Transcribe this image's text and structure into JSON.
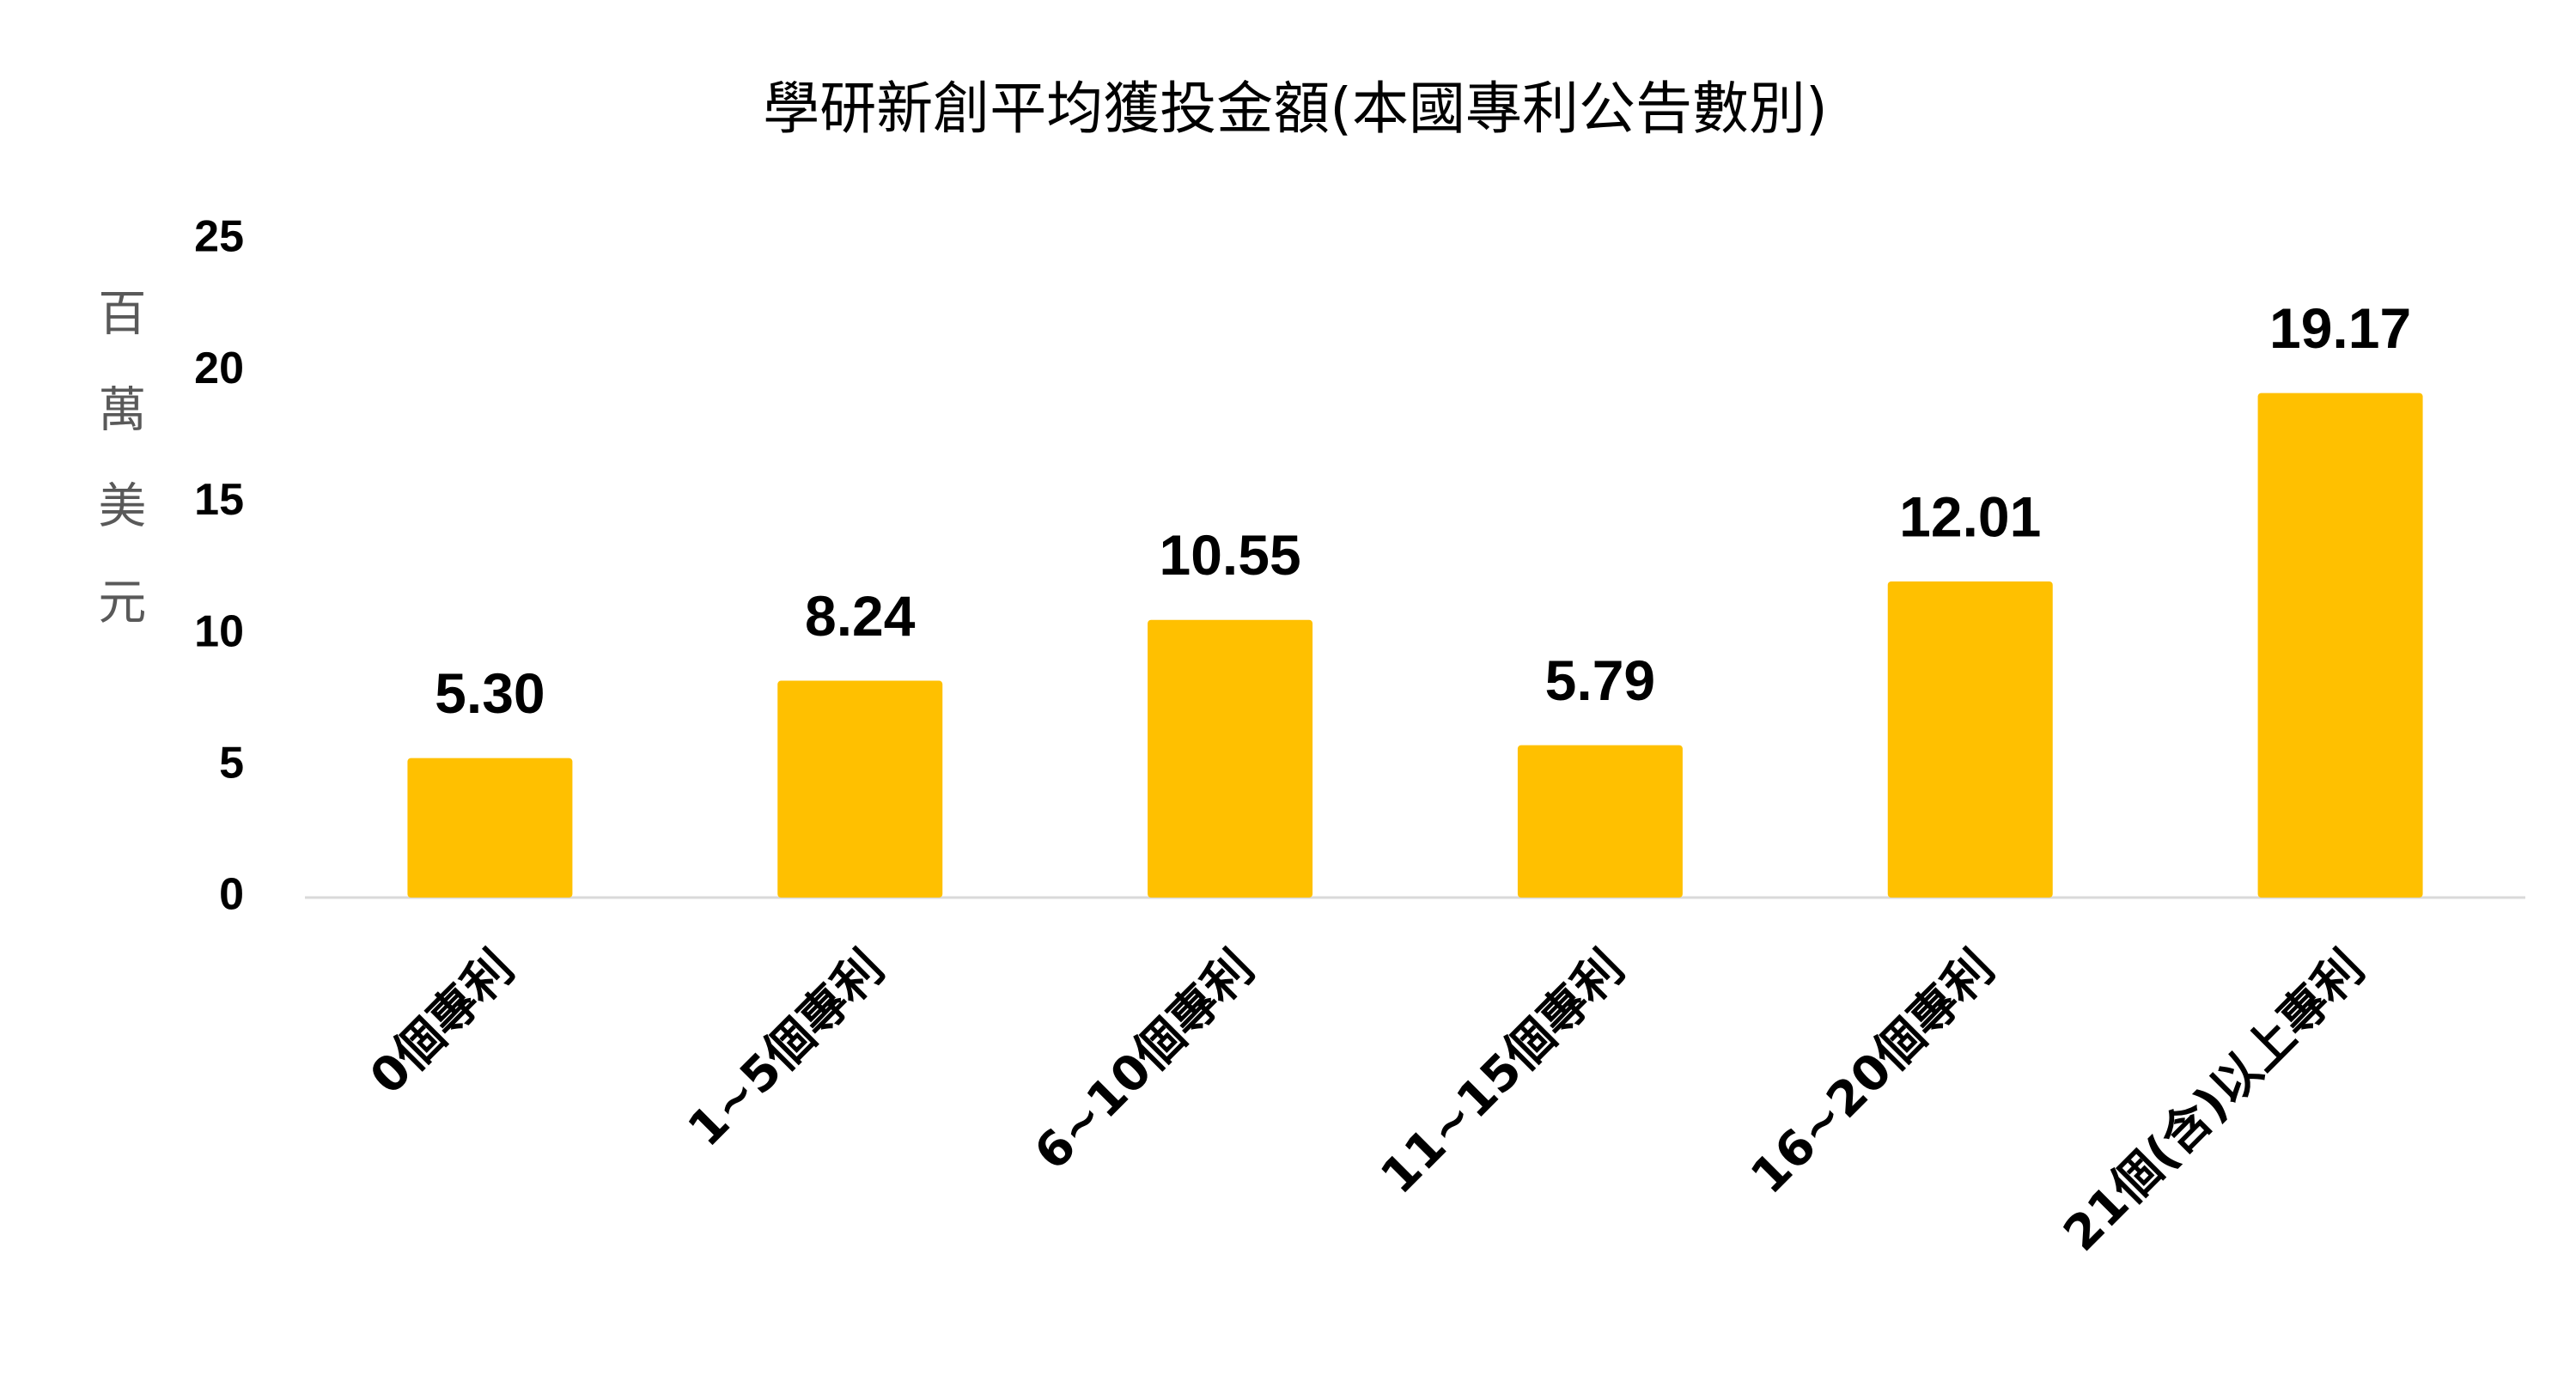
{
  "chart_data": {
    "type": "bar",
    "title": "學研新創平均獲投金額(本國專利公告數別)",
    "y_label": "百萬美元",
    "categories": [
      "0個專利",
      "1~5個專利",
      "6~10個專利",
      "11~15個專利",
      "16~20個專利",
      "21個(含)以上專利"
    ],
    "values": [
      5.3,
      8.24,
      10.55,
      5.79,
      12.01,
      19.17
    ],
    "value_labels": [
      "5.30",
      "8.24",
      "10.55",
      "5.79",
      "12.01",
      "19.17"
    ],
    "color": "#FFC000",
    "ylim": [
      0,
      25
    ],
    "yticks": [
      0,
      5,
      10,
      15,
      20,
      25
    ],
    "grid": false
  }
}
